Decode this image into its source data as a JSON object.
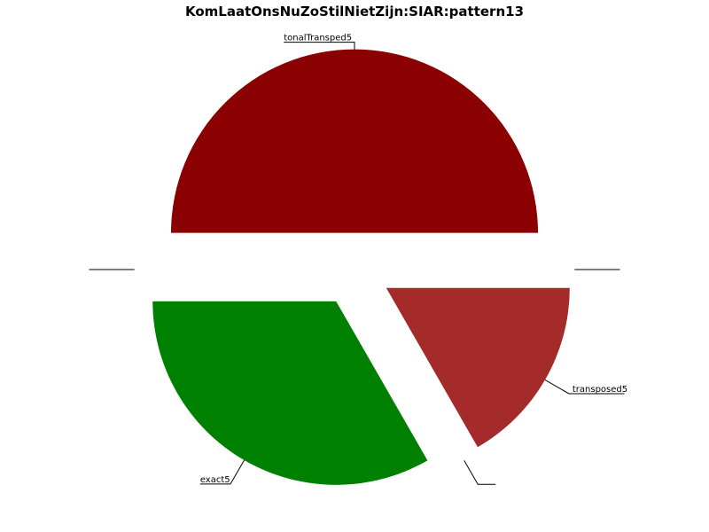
{
  "chart_data": {
    "type": "pie",
    "title": "KomLaatOnsNuZoStilNietZijn:SIAR:pattern13",
    "slices": [
      {
        "label": "tonalTransped5",
        "value": 50,
        "color": "#8b0000"
      },
      {
        "label": "",
        "value": 0,
        "color": "#ffffff"
      },
      {
        "label": "exact5",
        "value": 33.3,
        "color": "#008000"
      },
      {
        "label": "",
        "value": 0,
        "color": "#ffffff"
      },
      {
        "label": "transposed5",
        "value": 16.7,
        "color": "#a52a2a"
      },
      {
        "label": "",
        "value": 0,
        "color": "#ffffff"
      }
    ],
    "exploded": true
  }
}
